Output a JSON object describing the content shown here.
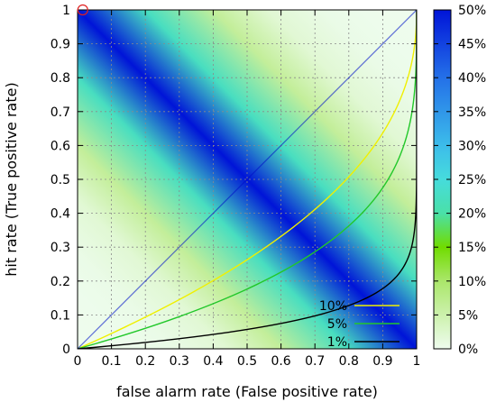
{
  "chart_data": {
    "type": "heatmap",
    "xlabel": "false alarm rate (False positive rate)",
    "ylabel": "hit rate (True positive rate)",
    "xlim": [
      0,
      1
    ],
    "ylim": [
      0,
      1
    ],
    "x_ticks": [
      "0",
      "0.1",
      "0.2",
      "0.3",
      "0.4",
      "0.5",
      "0.6",
      "0.7",
      "0.8",
      "0.9",
      "1"
    ],
    "y_ticks": [
      "0",
      "0.1",
      "0.2",
      "0.3",
      "0.4",
      "0.5",
      "0.6",
      "0.7",
      "0.8",
      "0.9",
      "1"
    ],
    "grid": true,
    "colorbar": {
      "range": [
        0,
        50
      ],
      "ticks": [
        "0%",
        "5%",
        "10%",
        "15%",
        "20%",
        "25%",
        "30%",
        "35%",
        "40%",
        "45%",
        "50%"
      ],
      "colors": [
        {
          "value": 0,
          "color": "#eefcee"
        },
        {
          "value": 10,
          "color": "#aae66a"
        },
        {
          "value": 15,
          "color": "#70dc00"
        },
        {
          "value": 20,
          "color": "#4ae0a8"
        },
        {
          "value": 25,
          "color": "#46dcdc"
        },
        {
          "value": 30,
          "color": "#3cbcea"
        },
        {
          "value": 40,
          "color": "#2470e8"
        },
        {
          "value": 50,
          "color": "#0014d8"
        }
      ]
    },
    "contours": [
      {
        "name": "10%",
        "color": "#f0f000"
      },
      {
        "name": "5%",
        "color": "#22c82a"
      },
      {
        "name": "1%",
        "color": "#000000"
      }
    ],
    "legend_position": "bottom-right",
    "marker": {
      "x": 0.01,
      "y": 1.0,
      "color": "#e02020"
    }
  }
}
